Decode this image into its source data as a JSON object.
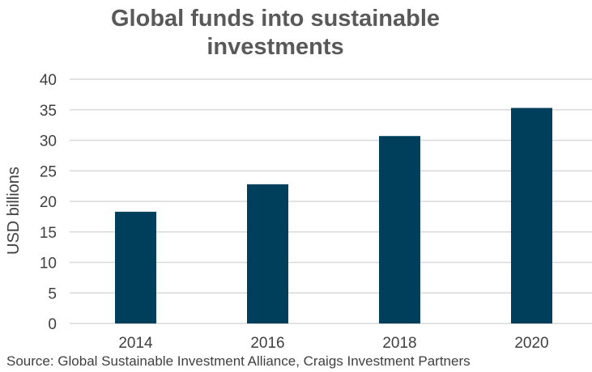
{
  "chart_data": {
    "type": "bar",
    "title_lines": [
      "Global funds into sustainable",
      "investments"
    ],
    "ylabel": "USD billions",
    "categories": [
      "2014",
      "2016",
      "2018",
      "2020"
    ],
    "values": [
      18.3,
      22.8,
      30.7,
      35.3
    ],
    "ylim": [
      0,
      40
    ],
    "yticks": [
      0,
      5,
      10,
      15,
      20,
      25,
      30,
      35,
      40
    ],
    "grid": true,
    "legend": "none",
    "bar_color": "#003f5c",
    "grid_color": "#d9d9d9"
  },
  "source": "Source: Global Sustainable Investment Alliance, Craigs Investment Partners"
}
